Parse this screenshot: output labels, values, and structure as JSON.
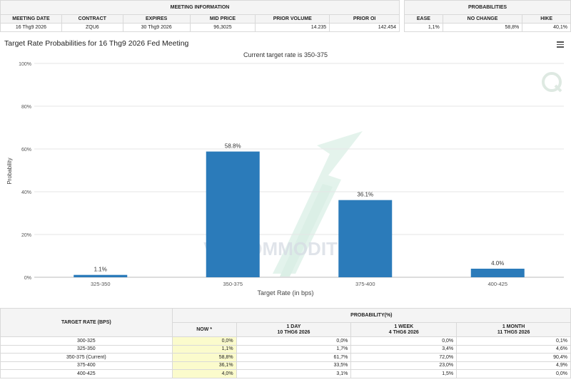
{
  "meeting_info": {
    "title": "MEETING INFORMATION",
    "headers": [
      "MEETING DATE",
      "CONTRACT",
      "EXPIRES",
      "MID PRICE",
      "PRIOR VOLUME",
      "PRIOR OI"
    ],
    "row": [
      "16 Thg9 2026",
      "ZQU6",
      "30 Thg9 2026",
      "96,3025",
      "14.235",
      "142.454"
    ]
  },
  "probabilities": {
    "title": "PROBABILITIES",
    "headers": [
      "EASE",
      "NO CHANGE",
      "HIKE"
    ],
    "row": [
      "1,1%",
      "58,8%",
      "40,1%"
    ]
  },
  "chart_title": "Target Rate Probabilities for 16 Thg9 2026 Fed Meeting",
  "watermark": "VN COMMODITIES",
  "chart_data": {
    "type": "bar",
    "title": "Current target rate is 350-375",
    "categories": [
      "325-350",
      "350-375",
      "375-400",
      "400-425"
    ],
    "values": [
      1.1,
      58.8,
      36.1,
      4.0
    ],
    "data_labels": [
      "1.1%",
      "58.8%",
      "36.1%",
      "4.0%"
    ],
    "xlabel": "Target Rate (in bps)",
    "ylabel": "Probability",
    "ylim": [
      0,
      100
    ],
    "yticks": [
      0,
      20,
      40,
      60,
      80,
      100
    ],
    "ytick_labels": [
      "0%",
      "20%",
      "40%",
      "60%",
      "80%",
      "100%"
    ],
    "bar_color": "#2b7bba",
    "grid": true
  },
  "bottom_table": {
    "target_header": "TARGET RATE (BPS)",
    "prob_header": "PROBABILITY(%)",
    "columns": [
      {
        "line1": "NOW *",
        "line2": ""
      },
      {
        "line1": "1 DAY",
        "line2": "10 THG6 2026"
      },
      {
        "line1": "1 WEEK",
        "line2": "4 THG6 2026"
      },
      {
        "line1": "1 MONTH",
        "line2": "11 THG5 2026"
      }
    ],
    "rows": [
      {
        "rate": "300-325",
        "values": [
          "0,0%",
          "0,0%",
          "0,0%",
          "0,1%"
        ]
      },
      {
        "rate": "325-350",
        "values": [
          "1,1%",
          "1,7%",
          "3,4%",
          "4,6%"
        ]
      },
      {
        "rate": "350-375 (Current)",
        "values": [
          "58,8%",
          "61,7%",
          "72,0%",
          "90,4%"
        ]
      },
      {
        "rate": "375-400",
        "values": [
          "36,1%",
          "33,5%",
          "23,0%",
          "4,9%"
        ]
      },
      {
        "rate": "400-425",
        "values": [
          "4,0%",
          "3,1%",
          "1,5%",
          "0,0%"
        ]
      }
    ]
  }
}
